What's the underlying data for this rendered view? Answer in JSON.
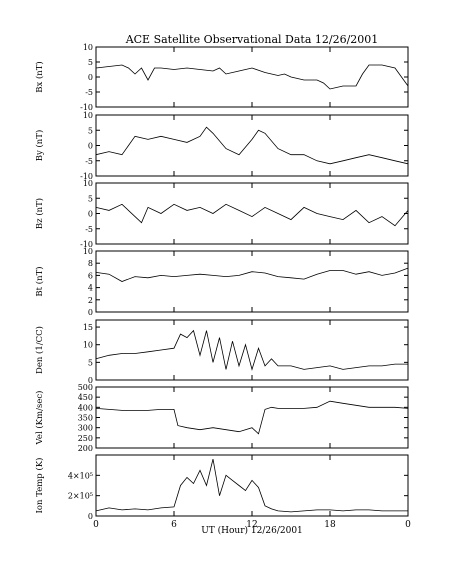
{
  "chart_data": {
    "type": "line",
    "title": "ACE Satellite Observational Data   12/26/2001",
    "xlabel": "UT (Hour)   12/26/2001",
    "x_ticks": [
      "0",
      "6",
      "12",
      "18",
      "0"
    ],
    "xlim": [
      0,
      24
    ],
    "panels": [
      {
        "id": "bx",
        "ylabel": "Bx (nT)",
        "ylim": [
          -10,
          10
        ],
        "yticks": [
          "-10",
          "-5",
          "0",
          "5",
          "10"
        ],
        "ytick_values": [
          -10,
          -5,
          0,
          5,
          10
        ],
        "x": [
          0,
          1,
          2,
          2.5,
          3,
          3.5,
          4,
          4.5,
          5,
          6,
          7,
          8,
          9,
          9.5,
          10,
          11,
          12,
          13,
          14,
          14.5,
          15,
          16,
          17,
          17.5,
          18,
          19,
          20,
          20.5,
          21,
          22,
          23,
          23.5,
          24
        ],
        "values": [
          3,
          3.5,
          4,
          3,
          1,
          3,
          -1,
          3,
          3,
          2.5,
          3,
          2.5,
          2,
          3,
          1,
          2,
          3,
          1.5,
          0.5,
          1,
          0,
          -1,
          -1,
          -2,
          -4,
          -3,
          -3,
          1,
          4,
          4,
          3,
          0,
          -3
        ]
      },
      {
        "id": "by",
        "ylabel": "By (nT)",
        "ylim": [
          -10,
          10
        ],
        "yticks": [
          "-10",
          "-5",
          "0",
          "5",
          "10"
        ],
        "ytick_values": [
          -10,
          -5,
          0,
          5,
          10
        ],
        "x": [
          0,
          1,
          2,
          2.5,
          3,
          4,
          5,
          6,
          7,
          8,
          8.5,
          9,
          10,
          11,
          12,
          12.5,
          13,
          14,
          15,
          16,
          17,
          18,
          19,
          20,
          21,
          22,
          23,
          24
        ],
        "values": [
          -3,
          -2,
          -3,
          0,
          3,
          2,
          3,
          2,
          1,
          3,
          6,
          4,
          -1,
          -3,
          2,
          5,
          4,
          -1,
          -3,
          -3,
          -5,
          -6,
          -5,
          -4,
          -3,
          -4,
          -5,
          -6
        ]
      },
      {
        "id": "bz",
        "ylabel": "Bz (nT)",
        "ylim": [
          -10,
          10
        ],
        "yticks": [
          "-10",
          "-5",
          "0",
          "5",
          "10"
        ],
        "ytick_values": [
          -10,
          -5,
          0,
          5,
          10
        ],
        "x": [
          0,
          1,
          2,
          3,
          3.5,
          4,
          5,
          6,
          7,
          8,
          9,
          10,
          11,
          12,
          13,
          14,
          15,
          16,
          17,
          18,
          19,
          20,
          21,
          22,
          23,
          24
        ],
        "values": [
          2,
          1,
          3,
          -1,
          -3,
          2,
          0,
          3,
          1,
          2,
          0,
          3,
          1,
          -1,
          2,
          0,
          -2,
          2,
          0,
          -1,
          -2,
          1,
          -3,
          -1,
          -4,
          1
        ]
      },
      {
        "id": "bt",
        "ylabel": "Bt (nT)",
        "ylim": [
          0,
          10
        ],
        "yticks": [
          "0",
          "2",
          "4",
          "6",
          "8",
          "10"
        ],
        "ytick_values": [
          0,
          2,
          4,
          6,
          8,
          10
        ],
        "x": [
          0,
          1,
          2,
          3,
          4,
          5,
          6,
          7,
          8,
          9,
          10,
          11,
          12,
          13,
          14,
          15,
          16,
          17,
          18,
          19,
          20,
          21,
          22,
          23,
          24
        ],
        "values": [
          6.5,
          6.2,
          5.0,
          5.8,
          5.6,
          6.0,
          5.8,
          6.0,
          6.2,
          6.0,
          5.8,
          6.0,
          6.6,
          6.4,
          5.8,
          5.6,
          5.4,
          6.2,
          6.8,
          6.8,
          6.2,
          6.6,
          6.0,
          6.4,
          7.2
        ]
      },
      {
        "id": "den",
        "ylabel": "Den (1/CC)",
        "ylim": [
          0,
          17
        ],
        "yticks": [
          "0",
          "5",
          "10",
          "15"
        ],
        "ytick_values": [
          0,
          5,
          10,
          15
        ],
        "x": [
          0,
          1,
          2,
          3,
          4,
          5,
          6,
          6.5,
          7,
          7.5,
          8,
          8.5,
          9,
          9.5,
          10,
          10.5,
          11,
          11.5,
          12,
          12.5,
          13,
          13.5,
          14,
          15,
          16,
          17,
          18,
          19,
          20,
          21,
          22,
          23,
          24
        ],
        "values": [
          6,
          7,
          7.5,
          7.5,
          8,
          8.5,
          9,
          13,
          12,
          14,
          7,
          14,
          5,
          12,
          3,
          11,
          4,
          10,
          3,
          9,
          4,
          6,
          4,
          4,
          3,
          3.5,
          4,
          3,
          3.5,
          4,
          4,
          4.5,
          4.5
        ]
      },
      {
        "id": "vel",
        "ylabel": "Vel (Km/sec)",
        "ylim": [
          200,
          500
        ],
        "yticks": [
          "200",
          "250",
          "300",
          "350",
          "400",
          "450",
          "500"
        ],
        "ytick_values": [
          200,
          250,
          300,
          350,
          400,
          450,
          500
        ],
        "x": [
          0,
          1,
          2,
          3,
          4,
          5,
          6,
          6.3,
          7,
          8,
          9,
          10,
          11,
          12,
          12.5,
          13,
          13.5,
          14,
          15,
          16,
          17,
          18,
          19,
          20,
          21,
          22,
          23,
          24
        ],
        "values": [
          395,
          390,
          385,
          385,
          385,
          390,
          390,
          310,
          300,
          290,
          300,
          290,
          280,
          300,
          270,
          390,
          400,
          395,
          395,
          395,
          400,
          430,
          420,
          410,
          400,
          400,
          400,
          395
        ]
      },
      {
        "id": "temp",
        "ylabel": "Ion Temp (K)",
        "ylim": [
          0,
          600000
        ],
        "yticks": [
          "0",
          "2×10⁵",
          "4×10⁵"
        ],
        "ytick_values": [
          0,
          200000,
          400000
        ],
        "x": [
          0,
          1,
          2,
          3,
          4,
          5,
          6,
          6.5,
          7,
          7.5,
          8,
          8.5,
          9,
          9.5,
          10,
          10.5,
          11,
          11.5,
          12,
          12.5,
          13,
          13.5,
          14,
          15,
          16,
          17,
          18,
          19,
          20,
          21,
          22,
          23,
          24
        ],
        "values": [
          50000,
          80000,
          60000,
          70000,
          60000,
          80000,
          90000,
          300000,
          380000,
          320000,
          450000,
          300000,
          560000,
          200000,
          400000,
          350000,
          300000,
          250000,
          350000,
          280000,
          100000,
          70000,
          50000,
          40000,
          50000,
          60000,
          60000,
          50000,
          60000,
          60000,
          50000,
          50000,
          50000
        ]
      }
    ]
  }
}
